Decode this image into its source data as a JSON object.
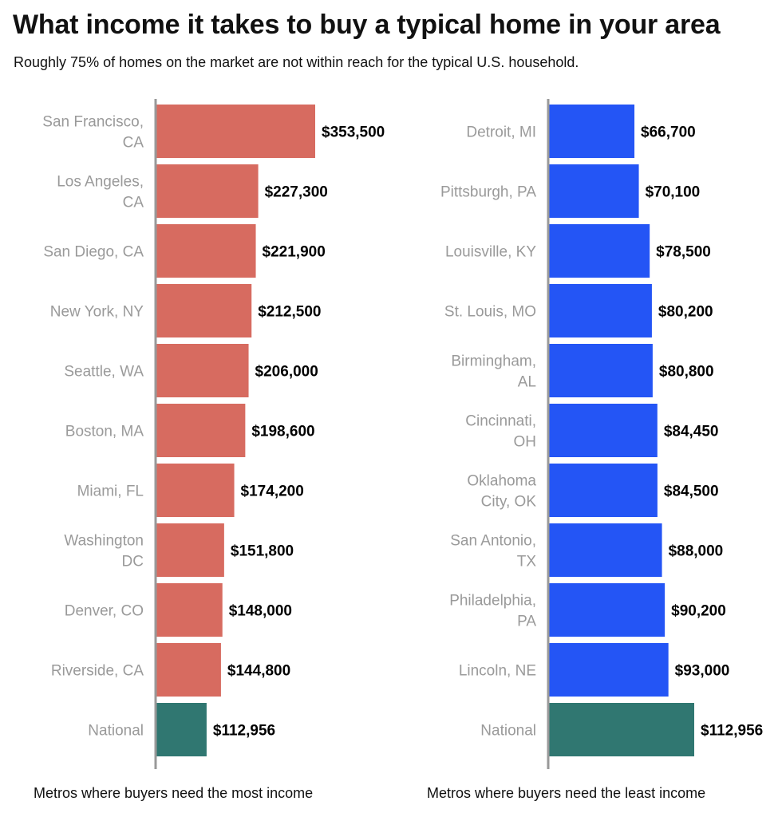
{
  "title": "What income it takes to buy a typical home in your area",
  "subtitle": "Roughly 75% of homes on the market are not within reach for the typical U.S. household.",
  "colors": {
    "most": "#d76b60",
    "least": "#2455f5",
    "national": "#307771",
    "axis": "#999999"
  },
  "chart_data": [
    {
      "type": "bar",
      "orientation": "horizontal",
      "xlabel": "Metros where buyers need the most income",
      "xlim": [
        0,
        353500
      ],
      "categories": [
        [
          "San Francisco,",
          "CA"
        ],
        [
          "Los Angeles,",
          "CA"
        ],
        [
          "San Diego, CA"
        ],
        [
          "New York, NY"
        ],
        [
          "Seattle, WA"
        ],
        [
          "Boston, MA"
        ],
        [
          "Miami, FL"
        ],
        [
          "Washington",
          "DC"
        ],
        [
          "Denver, CO"
        ],
        [
          "Riverside, CA"
        ],
        [
          "National"
        ]
      ],
      "values": [
        353500,
        227300,
        221900,
        212500,
        206000,
        198600,
        174200,
        151800,
        148000,
        144800,
        112956
      ],
      "value_labels": [
        "$353,500",
        "$227,300",
        "$221,900",
        "$212,500",
        "$206,000",
        "$198,600",
        "$174,200",
        "$151,800",
        "$148,000",
        "$144,800",
        "$112,956"
      ],
      "highlight_index": 10
    },
    {
      "type": "bar",
      "orientation": "horizontal",
      "xlabel": "Metros where buyers need the least income",
      "xlim": [
        0,
        112956
      ],
      "categories": [
        [
          "Detroit, MI"
        ],
        [
          "Pittsburgh, PA"
        ],
        [
          "Louisville, KY"
        ],
        [
          "St. Louis, MO"
        ],
        [
          "Birmingham,",
          "AL"
        ],
        [
          "Cincinnati,",
          "OH"
        ],
        [
          "Oklahoma",
          "City, OK"
        ],
        [
          "San Antonio,",
          "TX"
        ],
        [
          "Philadelphia,",
          "PA"
        ],
        [
          "Lincoln, NE"
        ],
        [
          "National"
        ]
      ],
      "values": [
        66700,
        70100,
        78500,
        80200,
        80800,
        84450,
        84500,
        88000,
        90200,
        93000,
        112956
      ],
      "value_labels": [
        "$66,700",
        "$70,100",
        "$78,500",
        "$80,200",
        "$80,800",
        "$84,450",
        "$84,500",
        "$88,000",
        "$90,200",
        "$93,000",
        "$112,956"
      ],
      "highlight_index": 10
    }
  ]
}
